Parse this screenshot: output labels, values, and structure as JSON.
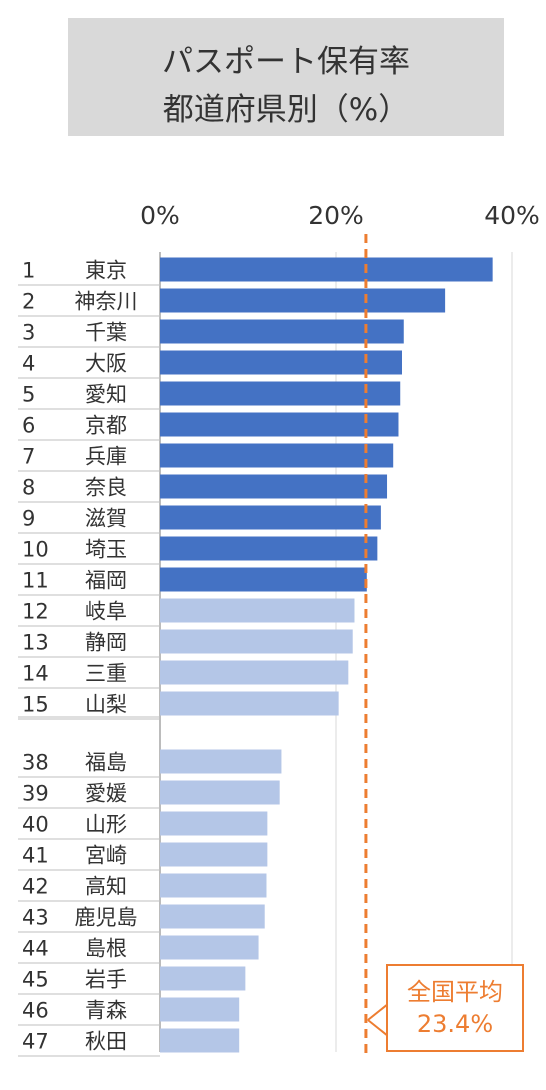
{
  "title": [
    "パスポート保有率",
    "都道府県別（%）"
  ],
  "colors": {
    "top_bar": "#4472c4",
    "other_bar": "#b4c6e7",
    "average_line": "#ed7d31",
    "gridline": "#d9d9d9",
    "text": "#333333"
  },
  "chart_data": {
    "type": "bar",
    "orientation": "horizontal",
    "xlim": [
      0,
      40
    ],
    "x_ticks": [
      "0%",
      "20%",
      "40%"
    ],
    "x_tick_values": [
      0,
      20,
      40
    ],
    "grid": true,
    "groups": [
      {
        "ranks": [
          "1",
          "2",
          "3",
          "4",
          "5",
          "6",
          "7",
          "8",
          "9",
          "10",
          "11",
          "12",
          "13",
          "14",
          "15"
        ],
        "categories": [
          "東京",
          "神奈川",
          "千葉",
          "大阪",
          "愛知",
          "京都",
          "兵庫",
          "奈良",
          "滋賀",
          "埼玉",
          "福岡",
          "岐阜",
          "静岡",
          "三重",
          "山梨"
        ],
        "values": [
          37.8,
          32.4,
          27.7,
          27.5,
          27.3,
          27.1,
          26.5,
          25.8,
          25.1,
          24.7,
          23.5,
          22.1,
          21.9,
          21.4,
          20.3
        ],
        "highlight_count": 11
      },
      {
        "ranks": [
          "38",
          "39",
          "40",
          "41",
          "42",
          "43",
          "44",
          "45",
          "46",
          "47"
        ],
        "categories": [
          "福島",
          "愛媛",
          "山形",
          "宮崎",
          "高知",
          "鹿児島",
          "島根",
          "岩手",
          "青森",
          "秋田"
        ],
        "values": [
          13.8,
          13.6,
          12.2,
          12.2,
          12.1,
          11.9,
          11.2,
          9.7,
          9.0,
          9.0
        ],
        "highlight_count": 0
      }
    ],
    "average": {
      "value": 23.4,
      "label": [
        "全国平均",
        "23.4%"
      ]
    }
  }
}
